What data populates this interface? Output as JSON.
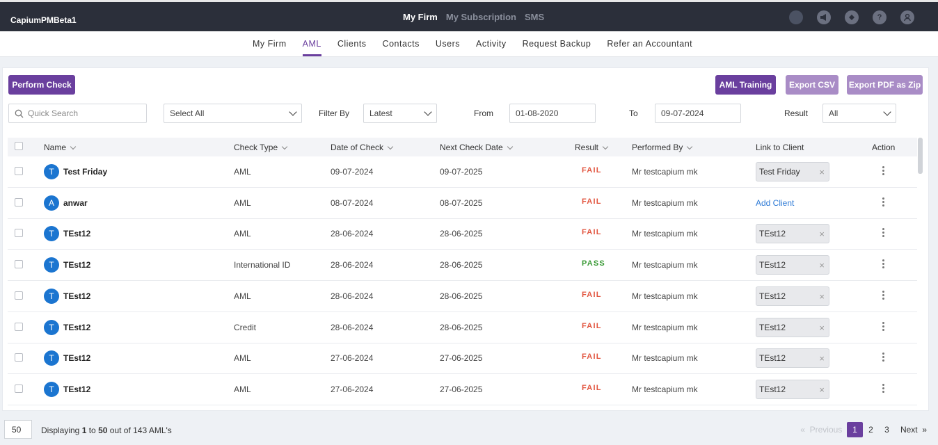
{
  "app": {
    "brand": "CapiumPMBeta1"
  },
  "topnav": {
    "items": [
      {
        "label": "My Firm",
        "active": true
      },
      {
        "label": "My Subscription",
        "active": false
      },
      {
        "label": "SMS",
        "active": false
      }
    ]
  },
  "top_icons": [
    "status-icon",
    "megaphone-icon",
    "ticket-icon",
    "help-icon",
    "user-icon"
  ],
  "subnav": {
    "items": [
      {
        "label": "My Firm"
      },
      {
        "label": "AML"
      },
      {
        "label": "Clients"
      },
      {
        "label": "Contacts"
      },
      {
        "label": "Users"
      },
      {
        "label": "Activity"
      },
      {
        "label": "Request Backup"
      },
      {
        "label": "Refer an Accountant"
      }
    ],
    "active": "AML"
  },
  "toolbar": {
    "perform_check": "Perform Check",
    "aml_training": "AML Training",
    "export_csv": "Export CSV",
    "export_pdf": "Export PDF as Zip"
  },
  "filters": {
    "search_placeholder": "Quick Search",
    "select_all": "Select All",
    "filter_by_label": "Filter By",
    "filter_by_value": "Latest",
    "from_label": "From",
    "from_value": "01-08-2020",
    "to_label": "To",
    "to_value": "09-07-2024",
    "result_label": "Result",
    "result_value": "All"
  },
  "table": {
    "headers": {
      "name": "Name",
      "check_type": "Check Type",
      "date_of_check": "Date of Check",
      "next_check_date": "Next Check Date",
      "result": "Result",
      "performed_by": "Performed By",
      "link_to_client": "Link to Client",
      "action": "Action"
    },
    "rows": [
      {
        "initial": "T",
        "name": "Test Friday",
        "check_type": "AML",
        "date": "09-07-2024",
        "next": "09-07-2025",
        "result": "FAIL",
        "performed_by": "Mr testcapium mk",
        "link": "Test Friday"
      },
      {
        "initial": "A",
        "name": "anwar",
        "check_type": "AML",
        "date": "08-07-2024",
        "next": "08-07-2025",
        "result": "FAIL",
        "performed_by": "Mr testcapium mk",
        "link": null,
        "add_client": "Add Client"
      },
      {
        "initial": "T",
        "name": "TEst12",
        "check_type": "AML",
        "date": "28-06-2024",
        "next": "28-06-2025",
        "result": "FAIL",
        "performed_by": "Mr testcapium mk",
        "link": "TEst12"
      },
      {
        "initial": "T",
        "name": "TEst12",
        "check_type": "International ID",
        "date": "28-06-2024",
        "next": "28-06-2025",
        "result": "PASS",
        "performed_by": "Mr testcapium mk",
        "link": "TEst12"
      },
      {
        "initial": "T",
        "name": "TEst12",
        "check_type": "AML",
        "date": "28-06-2024",
        "next": "28-06-2025",
        "result": "FAIL",
        "performed_by": "Mr testcapium mk",
        "link": "TEst12"
      },
      {
        "initial": "T",
        "name": "TEst12",
        "check_type": "Credit",
        "date": "28-06-2024",
        "next": "28-06-2025",
        "result": "FAIL",
        "performed_by": "Mr testcapium mk",
        "link": "TEst12"
      },
      {
        "initial": "T",
        "name": "TEst12",
        "check_type": "AML",
        "date": "27-06-2024",
        "next": "27-06-2025",
        "result": "FAIL",
        "performed_by": "Mr testcapium mk",
        "link": "TEst12"
      },
      {
        "initial": "T",
        "name": "TEst12",
        "check_type": "AML",
        "date": "27-06-2024",
        "next": "27-06-2025",
        "result": "FAIL",
        "performed_by": "Mr testcapium mk",
        "link": "TEst12"
      }
    ]
  },
  "footer": {
    "page_size": "50",
    "display_prefix": "Displaying ",
    "display_from": "1",
    "display_mid": " to ",
    "display_to": "50",
    "display_suffix": " out of 143 AML's",
    "previous": "Previous",
    "next": "Next",
    "pages": [
      "1",
      "2",
      "3"
    ],
    "current_page": "1"
  },
  "colors": {
    "brand_purple": "#6a3f9e",
    "fail": "#e2553f",
    "pass": "#3a9a36",
    "link": "#2f7bd6"
  }
}
